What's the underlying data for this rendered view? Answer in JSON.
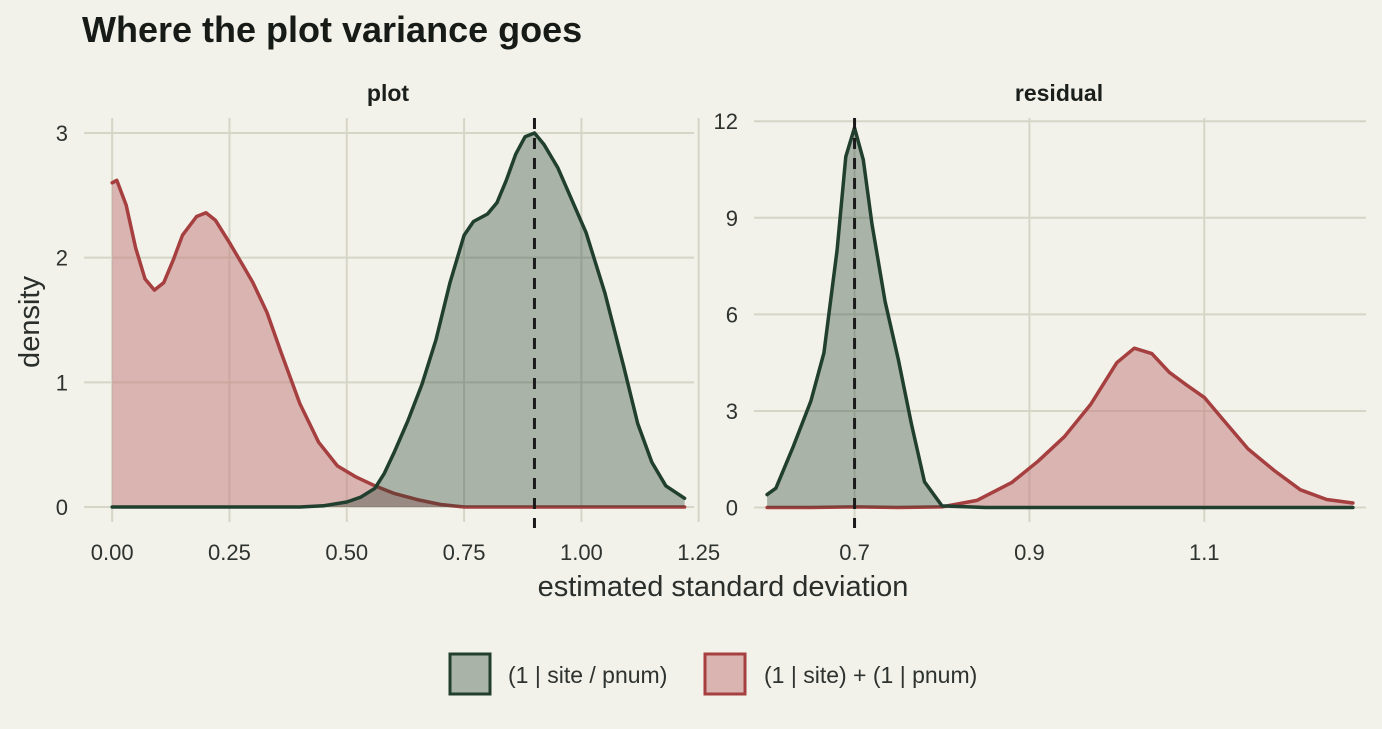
{
  "title": "Where the plot variance goes",
  "xlabel": "estimated standard deviation",
  "ylabel": "density",
  "colors": {
    "background": "#f2f1ea",
    "grid": "#d6d6c7",
    "nested_line": "#213f2e",
    "nested_fill": "#213f2e",
    "crossed_line": "#a63f3f",
    "crossed_fill": "#c07878",
    "reference_line": "#1a1a1a"
  },
  "legend": {
    "position": "bottom",
    "items": [
      {
        "key": "nested",
        "label": "(1 | site / pnum)"
      },
      {
        "key": "crossed",
        "label": "(1 | site) + (1 | pnum)"
      }
    ]
  },
  "chart_data": [
    {
      "type": "area",
      "panel": "plot",
      "xlim": [
        -0.06,
        1.24
      ],
      "ylim": [
        -0.12,
        3.12
      ],
      "xticks": [
        0.0,
        0.25,
        0.5,
        0.75,
        1.0,
        1.25
      ],
      "xtick_labels": [
        "0.00",
        "0.25",
        "0.50",
        "0.75",
        "1.00",
        "1.25"
      ],
      "yticks": [
        0,
        1,
        2,
        3
      ],
      "ytick_labels": [
        "0",
        "1",
        "2",
        "3"
      ],
      "reference_x": 0.9,
      "series": [
        {
          "key": "crossed",
          "x": [
            0.0,
            0.01,
            0.03,
            0.05,
            0.07,
            0.09,
            0.11,
            0.13,
            0.15,
            0.18,
            0.2,
            0.22,
            0.25,
            0.28,
            0.3,
            0.33,
            0.36,
            0.4,
            0.44,
            0.48,
            0.52,
            0.56,
            0.6,
            0.65,
            0.7,
            0.75,
            0.8,
            0.9,
            1.0,
            1.1,
            1.22
          ],
          "y": [
            2.6,
            2.62,
            2.42,
            2.08,
            1.83,
            1.74,
            1.8,
            1.98,
            2.18,
            2.33,
            2.36,
            2.3,
            2.12,
            1.93,
            1.8,
            1.56,
            1.24,
            0.83,
            0.52,
            0.33,
            0.24,
            0.17,
            0.11,
            0.06,
            0.02,
            0.0,
            0.0,
            0.0,
            0.0,
            0.0,
            0.0
          ]
        },
        {
          "key": "nested",
          "x": [
            0.0,
            0.3,
            0.4,
            0.45,
            0.5,
            0.53,
            0.56,
            0.58,
            0.6,
            0.63,
            0.66,
            0.69,
            0.72,
            0.75,
            0.77,
            0.8,
            0.82,
            0.84,
            0.86,
            0.88,
            0.9,
            0.92,
            0.95,
            0.98,
            1.01,
            1.05,
            1.09,
            1.12,
            1.15,
            1.18,
            1.22
          ],
          "y": [
            0.0,
            0.0,
            0.0,
            0.01,
            0.04,
            0.08,
            0.15,
            0.27,
            0.43,
            0.69,
            0.98,
            1.34,
            1.8,
            2.18,
            2.29,
            2.35,
            2.44,
            2.62,
            2.83,
            2.97,
            3.0,
            2.91,
            2.72,
            2.46,
            2.2,
            1.72,
            1.13,
            0.67,
            0.36,
            0.17,
            0.07
          ]
        }
      ]
    },
    {
      "type": "area",
      "panel": "residual",
      "xlim": [
        0.585,
        1.285
      ],
      "ylim": [
        -0.45,
        12.1
      ],
      "xticks": [
        0.7,
        0.9,
        1.1
      ],
      "xtick_labels": [
        "0.7",
        "0.9",
        "1.1"
      ],
      "yticks": [
        0,
        3,
        6,
        9,
        12
      ],
      "ytick_labels": [
        "0",
        "3",
        "6",
        "9",
        "12"
      ],
      "reference_x": 0.7,
      "series": [
        {
          "key": "crossed",
          "x": [
            0.6,
            0.65,
            0.7,
            0.75,
            0.8,
            0.84,
            0.88,
            0.91,
            0.94,
            0.97,
            1.0,
            1.02,
            1.04,
            1.06,
            1.08,
            1.1,
            1.12,
            1.15,
            1.18,
            1.21,
            1.24,
            1.27
          ],
          "y": [
            0.0,
            0.0,
            0.02,
            0.0,
            0.02,
            0.22,
            0.78,
            1.44,
            2.2,
            3.2,
            4.5,
            4.95,
            4.78,
            4.2,
            3.8,
            3.42,
            2.78,
            1.82,
            1.15,
            0.55,
            0.25,
            0.14
          ]
        },
        {
          "key": "nested",
          "x": [
            0.6,
            0.61,
            0.63,
            0.65,
            0.665,
            0.68,
            0.69,
            0.7,
            0.71,
            0.72,
            0.735,
            0.75,
            0.765,
            0.78,
            0.8,
            0.85,
            1.0,
            1.27
          ],
          "y": [
            0.4,
            0.6,
            1.9,
            3.3,
            4.8,
            8.0,
            10.9,
            11.8,
            10.8,
            8.8,
            6.4,
            4.6,
            2.6,
            0.8,
            0.05,
            0.0,
            0.0,
            0.0
          ]
        }
      ]
    }
  ],
  "panels": [
    {
      "strip": "plot"
    },
    {
      "strip": "residual"
    }
  ]
}
